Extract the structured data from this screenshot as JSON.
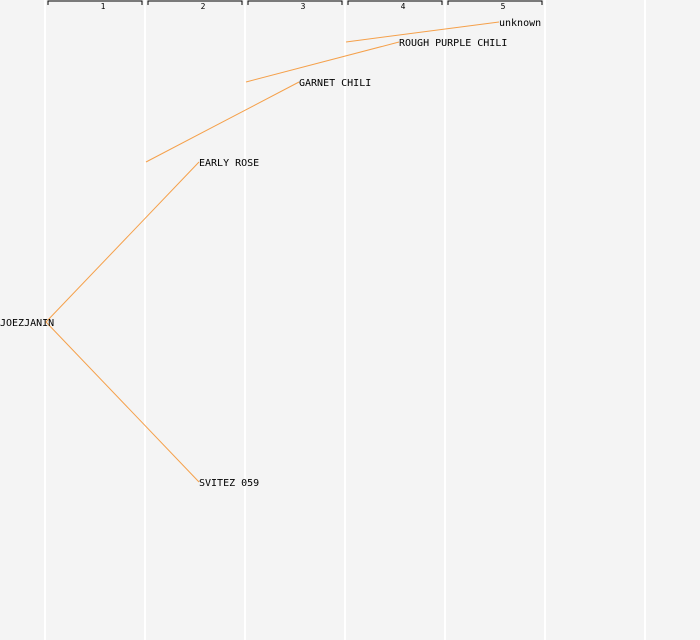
{
  "generations": [
    "1",
    "2",
    "3",
    "4",
    "5"
  ],
  "tree": {
    "nodes": [
      {
        "id": "joezjanin",
        "label": "JOEZJANIN",
        "generation": 0
      },
      {
        "id": "early-rose",
        "label": "EARLY ROSE",
        "generation": 1
      },
      {
        "id": "svitez-059",
        "label": "SVITEZ 059",
        "generation": 1
      },
      {
        "id": "garnet-chili",
        "label": "GARNET CHILI",
        "generation": 2
      },
      {
        "id": "rough-purple-chili",
        "label": "ROUGH PURPLE CHILI",
        "generation": 3
      },
      {
        "id": "unknown",
        "label": "unknown",
        "generation": 4
      }
    ],
    "edges": [
      {
        "from": "joezjanin",
        "to": "early-rose"
      },
      {
        "from": "joezjanin",
        "to": "svitez-059"
      },
      {
        "from": "early-rose",
        "to": "garnet-chili"
      },
      {
        "from": "garnet-chili",
        "to": "rough-purple-chili"
      },
      {
        "from": "rough-purple-chili",
        "to": "unknown"
      }
    ]
  },
  "colors": {
    "background": "#f4f4f4",
    "column_divider": "#ffffff",
    "edge": "#f5a04a",
    "bracket": "#000000",
    "text": "#000000"
  }
}
